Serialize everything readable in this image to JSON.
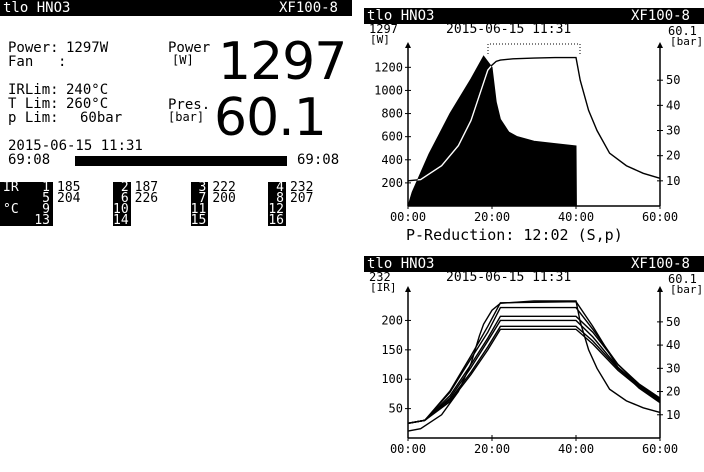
{
  "left_panel": {
    "header_left": "tlo HNO3",
    "header_right": "XF100-8",
    "power_label": "Power:",
    "power_value": "1297W",
    "fan_label": "Fan",
    "fan_value": ":",
    "big_power_label_1": "Power",
    "big_power_label_2": "[W]",
    "big_power_value": "1297",
    "irlim_label": "IRLim:",
    "irlim_value": "240°C",
    "tlim_label": "T Lim:",
    "tlim_value": "260°C",
    "plim_label": "p Lim:",
    "plim_value": "60bar",
    "big_pres_label_1": "Pres.",
    "big_pres_label_2": "[bar]",
    "big_pres_value": "60.1",
    "datetime": "2015-06-15 11:31",
    "elapsed": "69:08",
    "total": "69:08",
    "progress": 1.0,
    "ir_label": "IR",
    "unit_label": "°C",
    "sensors": [
      {
        "n1": "1",
        "n2": "5",
        "v1": "185",
        "v2": "204"
      },
      {
        "n1": "2",
        "n2": "6",
        "v1": "187",
        "v2": "226"
      },
      {
        "n1": "3",
        "n2": "7",
        "v1": "222",
        "v2": "200"
      },
      {
        "n1": "4",
        "n2": "8",
        "v1": "232",
        "v2": "207"
      }
    ],
    "sensors_row2": [
      {
        "n1": "9",
        "n2": "13"
      },
      {
        "n1": "10",
        "n2": "14"
      },
      {
        "n1": "11",
        "n2": "15"
      },
      {
        "n1": "12",
        "n2": "16"
      }
    ]
  },
  "top_chart": {
    "header_left": "tlo HNO3",
    "header_right": "XF100-8",
    "datetime": "2015-06-15 11:31",
    "ymax_label": "1297",
    "yunit": "[W]",
    "y2max_label": "60.1",
    "y2unit": "[bar]",
    "footer": "P-Reduction: 12:02 (S,p)"
  },
  "bottom_chart": {
    "header_left": "tlo HNO3",
    "header_right": "XF100-8",
    "datetime": "2015-06-15 11:31",
    "ymax_label": "232",
    "yunit": "[IR]",
    "y2max_label": "60.1",
    "y2unit": "[bar]"
  },
  "chart_data": [
    {
      "type": "area",
      "x_unit": "minutes",
      "xlim": [
        0,
        60
      ],
      "x_ticks": [
        "00:00",
        "20:00",
        "40:00",
        "60:00"
      ],
      "y_ticks": [
        "200",
        "400",
        "600",
        "800",
        "1000",
        "1200"
      ],
      "ylim": [
        0,
        1350
      ],
      "y2_ticks": [
        "10",
        "20",
        "30",
        "40",
        "50"
      ],
      "y2lim": [
        0,
        62
      ],
      "series": [
        {
          "axis": "y",
          "style": "filled",
          "x": [
            0,
            1,
            5,
            10,
            15,
            18,
            20,
            21,
            22,
            24,
            26,
            30,
            35,
            40,
            40.1
          ],
          "y": [
            0,
            120,
            450,
            800,
            1100,
            1297,
            1200,
            900,
            750,
            640,
            600,
            560,
            540,
            520,
            0
          ]
        },
        {
          "axis": "y2",
          "style": "line",
          "x": [
            0,
            3,
            8,
            12,
            15,
            17,
            18,
            19,
            20,
            21,
            22,
            25,
            30,
            35,
            40,
            41,
            43,
            45,
            48,
            52,
            56,
            60
          ],
          "y": [
            10,
            10.5,
            16,
            24,
            34,
            44,
            49,
            54,
            56,
            57.5,
            58,
            58.5,
            58.8,
            59,
            59,
            50,
            38,
            30,
            21,
            16,
            13,
            11
          ]
        }
      ]
    },
    {
      "type": "line",
      "x_unit": "minutes",
      "xlim": [
        0,
        60
      ],
      "x_ticks": [
        "00:00",
        "20:00",
        "40:00",
        "60:00"
      ],
      "y_ticks": [
        "50",
        "100",
        "150",
        "200"
      ],
      "ylim": [
        0,
        245
      ],
      "y2_ticks": [
        "10",
        "20",
        "30",
        "40",
        "50"
      ],
      "y2lim": [
        0,
        62
      ],
      "series": [
        {
          "axis": "y",
          "x": [
            0,
            4,
            10,
            15,
            19,
            22,
            40,
            44,
            50,
            55,
            60
          ],
          "y": [
            25,
            30,
            80,
            140,
            190,
            230,
            232,
            190,
            120,
            85,
            60
          ]
        },
        {
          "axis": "y",
          "x": [
            0,
            4,
            10,
            15,
            19,
            22,
            40,
            44,
            50,
            55,
            60
          ],
          "y": [
            25,
            30,
            78,
            135,
            180,
            222,
            222,
            185,
            125,
            90,
            65
          ]
        },
        {
          "axis": "y",
          "x": [
            0,
            4,
            10,
            15,
            19,
            22,
            40,
            44,
            50,
            55,
            60
          ],
          "y": [
            25,
            30,
            72,
            125,
            170,
            207,
            207,
            180,
            125,
            92,
            68
          ]
        },
        {
          "axis": "y",
          "x": [
            0,
            4,
            10,
            15,
            19,
            22,
            40,
            44,
            50,
            55,
            60
          ],
          "y": [
            25,
            30,
            68,
            120,
            165,
            200,
            200,
            172,
            120,
            90,
            66
          ]
        },
        {
          "axis": "y",
          "x": [
            0,
            4,
            10,
            15,
            19,
            22,
            40,
            44,
            50,
            55,
            60
          ],
          "y": [
            25,
            30,
            65,
            112,
            155,
            190,
            190,
            165,
            118,
            88,
            64
          ]
        },
        {
          "axis": "y",
          "x": [
            0,
            4,
            10,
            15,
            19,
            22,
            40,
            44,
            50,
            55,
            60
          ],
          "y": [
            25,
            30,
            62,
            108,
            150,
            185,
            185,
            160,
            115,
            86,
            62
          ]
        },
        {
          "axis": "y2",
          "x": [
            0,
            3,
            8,
            12,
            15,
            17,
            18,
            20,
            22,
            30,
            40,
            41,
            43,
            45,
            48,
            52,
            56,
            60
          ],
          "y": [
            3,
            4,
            10,
            20,
            32,
            44,
            49,
            55,
            58,
            59,
            59,
            50,
            38,
            30,
            21,
            16,
            13,
            11
          ]
        }
      ]
    }
  ]
}
